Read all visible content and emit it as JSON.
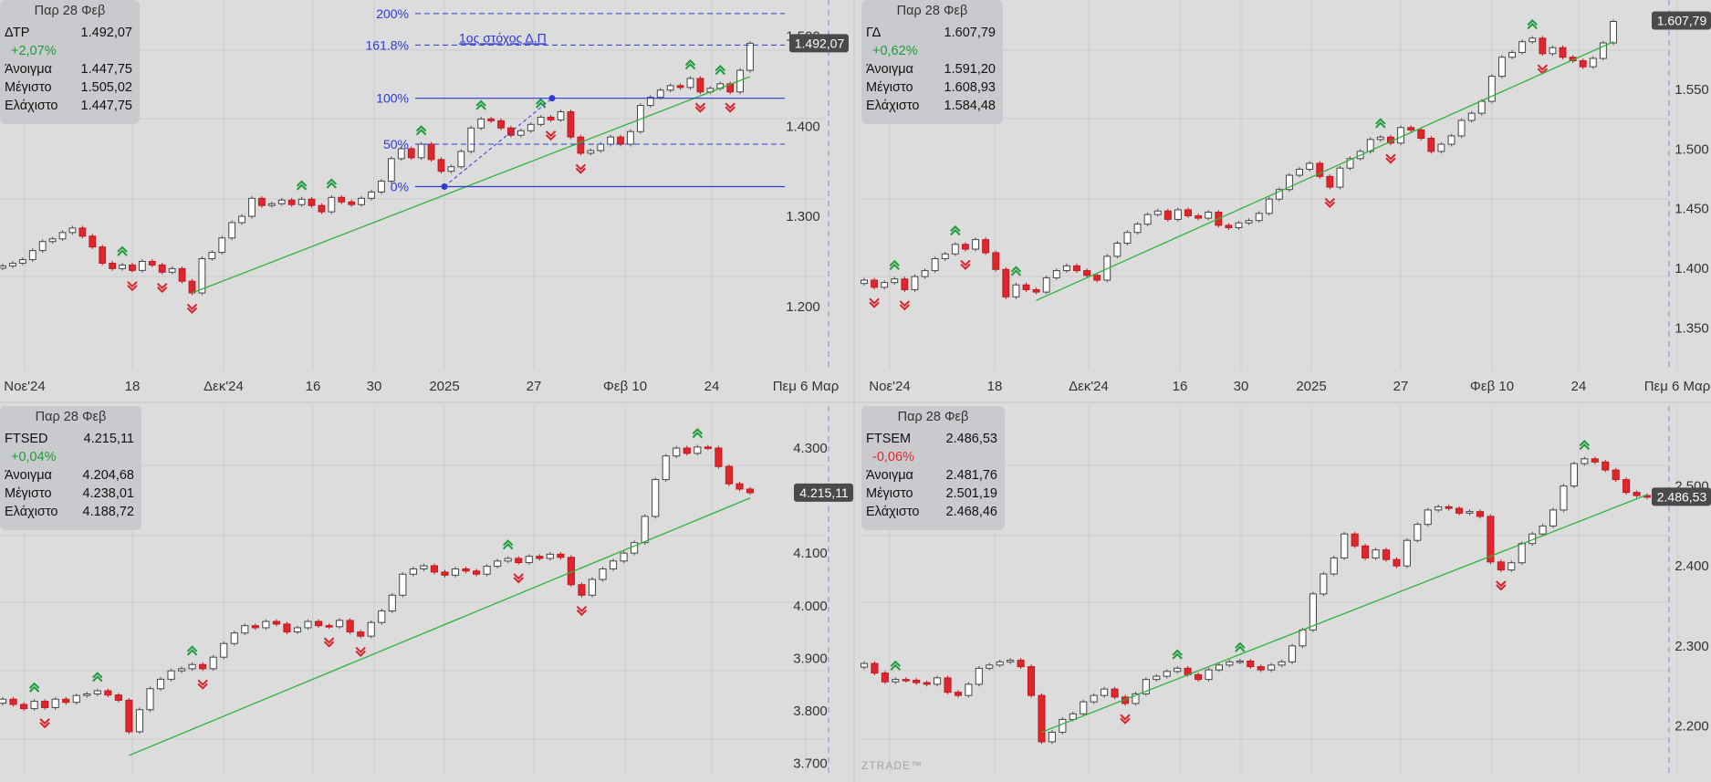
{
  "branding": "ZTRADE™",
  "colors": {
    "background": "#dcdcdc",
    "grid": "#cbcbcb",
    "up_candle": "#ffffff",
    "down_candle": "#e0262d",
    "trend": "#2fb33a",
    "fib": "#2d3bd0",
    "price_tag": "#4a4a4a"
  },
  "x_axis_labels": [
    "Νοε'24",
    "18",
    "Δεκ'24",
    "16",
    "30",
    "2025",
    "27",
    "Φεβ 10",
    "24",
    "Πεμ 6 Μαρ"
  ],
  "panels": [
    {
      "id": "DTR",
      "info": {
        "date": "Παρ 28 Φεβ",
        "symbol": "ΔΤΡ",
        "last": "1.492,07",
        "change": "+2,07%",
        "open_label": "Άνοιγμα",
        "open": "1.447,75",
        "high_label": "Μέγιστο",
        "high": "1.505,02",
        "low_label": "Ελάχιστο",
        "low": "1.447,75"
      },
      "price_tag": "1.492,07",
      "y_ticks": [
        "1.500",
        "1.400",
        "1.300",
        "1.200"
      ],
      "fib": {
        "levels": [
          "200%",
          "161.8%",
          "100%",
          "50%",
          "0%"
        ],
        "note": "1ος στόχος Δ.Π"
      }
    },
    {
      "id": "GD",
      "info": {
        "date": "Παρ 28 Φεβ",
        "symbol": "ΓΔ",
        "last": "1.607,79",
        "change": "+0,62%",
        "open_label": "Άνοιγμα",
        "open": "1.591,20",
        "high_label": "Μέγιστο",
        "high": "1.608,93",
        "low_label": "Ελάχιστο",
        "low": "1.584,48"
      },
      "price_tag": "1.607,79",
      "y_ticks": [
        "1.550",
        "1.500",
        "1.450",
        "1.400",
        "1.350"
      ]
    },
    {
      "id": "FTSED",
      "info": {
        "date": "Παρ 28 Φεβ",
        "symbol": "FTSED",
        "last": "4.215,11",
        "change": "+0,04%",
        "open_label": "Άνοιγμα",
        "open": "4.204,68",
        "high_label": "Μέγιστο",
        "high": "4.238,01",
        "low_label": "Ελάχιστο",
        "low": "4.188,72"
      },
      "price_tag": "4.215,11",
      "y_ticks": [
        "4.300",
        "4.100",
        "4.000",
        "3.900",
        "3.800",
        "3.700"
      ]
    },
    {
      "id": "FTSEM",
      "info": {
        "date": "Παρ 28 Φεβ",
        "symbol": "FTSEM",
        "last": "2.486,53",
        "change": "-0,06%",
        "open_label": "Άνοιγμα",
        "open": "2.481,76",
        "high_label": "Μέγιστο",
        "high": "2.501,19",
        "low_label": "Ελάχιστο",
        "low": "2.468,46"
      },
      "price_tag": "2.486,53",
      "y_ticks": [
        "2.500",
        "2.400",
        "2.300",
        "2.200"
      ]
    }
  ],
  "chart_data": [
    {
      "type": "candlestick",
      "title": "ΔΤΡ",
      "y_range": [
        1130,
        1540
      ],
      "closes": [
        1245,
        1248,
        1252,
        1262,
        1272,
        1275,
        1282,
        1287,
        1278,
        1266,
        1248,
        1242,
        1246,
        1240,
        1250,
        1246,
        1238,
        1242,
        1228,
        1215,
        1253,
        1260,
        1276,
        1293,
        1300,
        1320,
        1312,
        1314,
        1318,
        1313,
        1319,
        1312,
        1305,
        1321,
        1316,
        1313,
        1320,
        1327,
        1339,
        1364,
        1375,
        1365,
        1380,
        1363,
        1350,
        1355,
        1372,
        1398,
        1408,
        1406,
        1398,
        1390,
        1395,
        1402,
        1410,
        1407,
        1416,
        1388,
        1370,
        1373,
        1380,
        1388,
        1380,
        1394,
        1423,
        1432,
        1440,
        1445,
        1443,
        1453,
        1438,
        1442,
        1447,
        1438,
        1462,
        1492
      ],
      "trendline": [
        [
          19,
          1215
        ],
        [
          75,
          1455
        ]
      ],
      "fib": [
        {
          "label": "200%",
          "value": 1525
        },
        {
          "label": "161.8%",
          "value": 1490
        },
        {
          "label": "100%",
          "value": 1431
        },
        {
          "label": "50%",
          "value": 1380
        },
        {
          "label": "0%",
          "value": 1333
        }
      ]
    },
    {
      "type": "candlestick",
      "title": "ΓΔ",
      "y_range": [
        1315,
        1625
      ],
      "closes": [
        1390,
        1384,
        1388,
        1391,
        1382,
        1393,
        1398,
        1408,
        1412,
        1420,
        1416,
        1424,
        1413,
        1399,
        1376,
        1386,
        1382,
        1380,
        1392,
        1398,
        1402,
        1398,
        1394,
        1390,
        1410,
        1421,
        1430,
        1437,
        1445,
        1448,
        1441,
        1449,
        1444,
        1442,
        1447,
        1436,
        1434,
        1438,
        1440,
        1446,
        1458,
        1466,
        1478,
        1483,
        1488,
        1477,
        1468,
        1484,
        1492,
        1498,
        1508,
        1510,
        1505,
        1518,
        1516,
        1509,
        1498,
        1504,
        1511,
        1524,
        1530,
        1540,
        1561,
        1577,
        1581,
        1590,
        1593,
        1580,
        1585,
        1577,
        1574,
        1569,
        1576,
        1589,
        1607
      ],
      "trendline": [
        [
          17,
          1373
        ],
        [
          74,
          1590
        ]
      ]
    },
    {
      "type": "candlestick",
      "title": "FTSED",
      "y_range": [
        3680,
        4380
      ],
      "closes": [
        3822,
        3812,
        3804,
        3818,
        3806,
        3822,
        3816,
        3829,
        3832,
        3838,
        3830,
        3820,
        3760,
        3802,
        3842,
        3860,
        3876,
        3880,
        3888,
        3880,
        3902,
        3928,
        3948,
        3962,
        3958,
        3970,
        3965,
        3950,
        3958,
        3970,
        3962,
        3960,
        3972,
        3950,
        3942,
        3968,
        3990,
        4020,
        4060,
        4070,
        4076,
        4064,
        4058,
        4070,
        4066,
        4060,
        4075,
        4085,
        4090,
        4082,
        4094,
        4090,
        4098,
        4092,
        4040,
        4020,
        4050,
        4070,
        4085,
        4100,
        4120,
        4170,
        4240,
        4285,
        4300,
        4290,
        4302,
        4300,
        4265,
        4232,
        4222,
        4215
      ],
      "trendline": [
        [
          12,
          3715
        ],
        [
          71,
          4205
        ]
      ]
    },
    {
      "type": "candlestick",
      "title": "FTSEM",
      "y_range": [
        2140,
        2600
      ],
      "closes": [
        2278,
        2266,
        2255,
        2258,
        2257,
        2254,
        2252,
        2260,
        2242,
        2238,
        2252,
        2272,
        2276,
        2280,
        2282,
        2274,
        2238,
        2180,
        2192,
        2208,
        2215,
        2230,
        2238,
        2246,
        2236,
        2228,
        2240,
        2258,
        2262,
        2268,
        2272,
        2264,
        2258,
        2270,
        2276,
        2280,
        2281,
        2274,
        2270,
        2276,
        2280,
        2300,
        2320,
        2365,
        2390,
        2410,
        2440,
        2425,
        2410,
        2420,
        2408,
        2400,
        2432,
        2452,
        2470,
        2474,
        2472,
        2466,
        2468,
        2462,
        2405,
        2395,
        2404,
        2428,
        2440,
        2450,
        2470,
        2500,
        2528,
        2534,
        2530,
        2520,
        2508,
        2492,
        2488,
        2486
      ],
      "trendline": [
        [
          17,
          2192
        ],
        [
          75,
          2489
        ]
      ]
    }
  ]
}
